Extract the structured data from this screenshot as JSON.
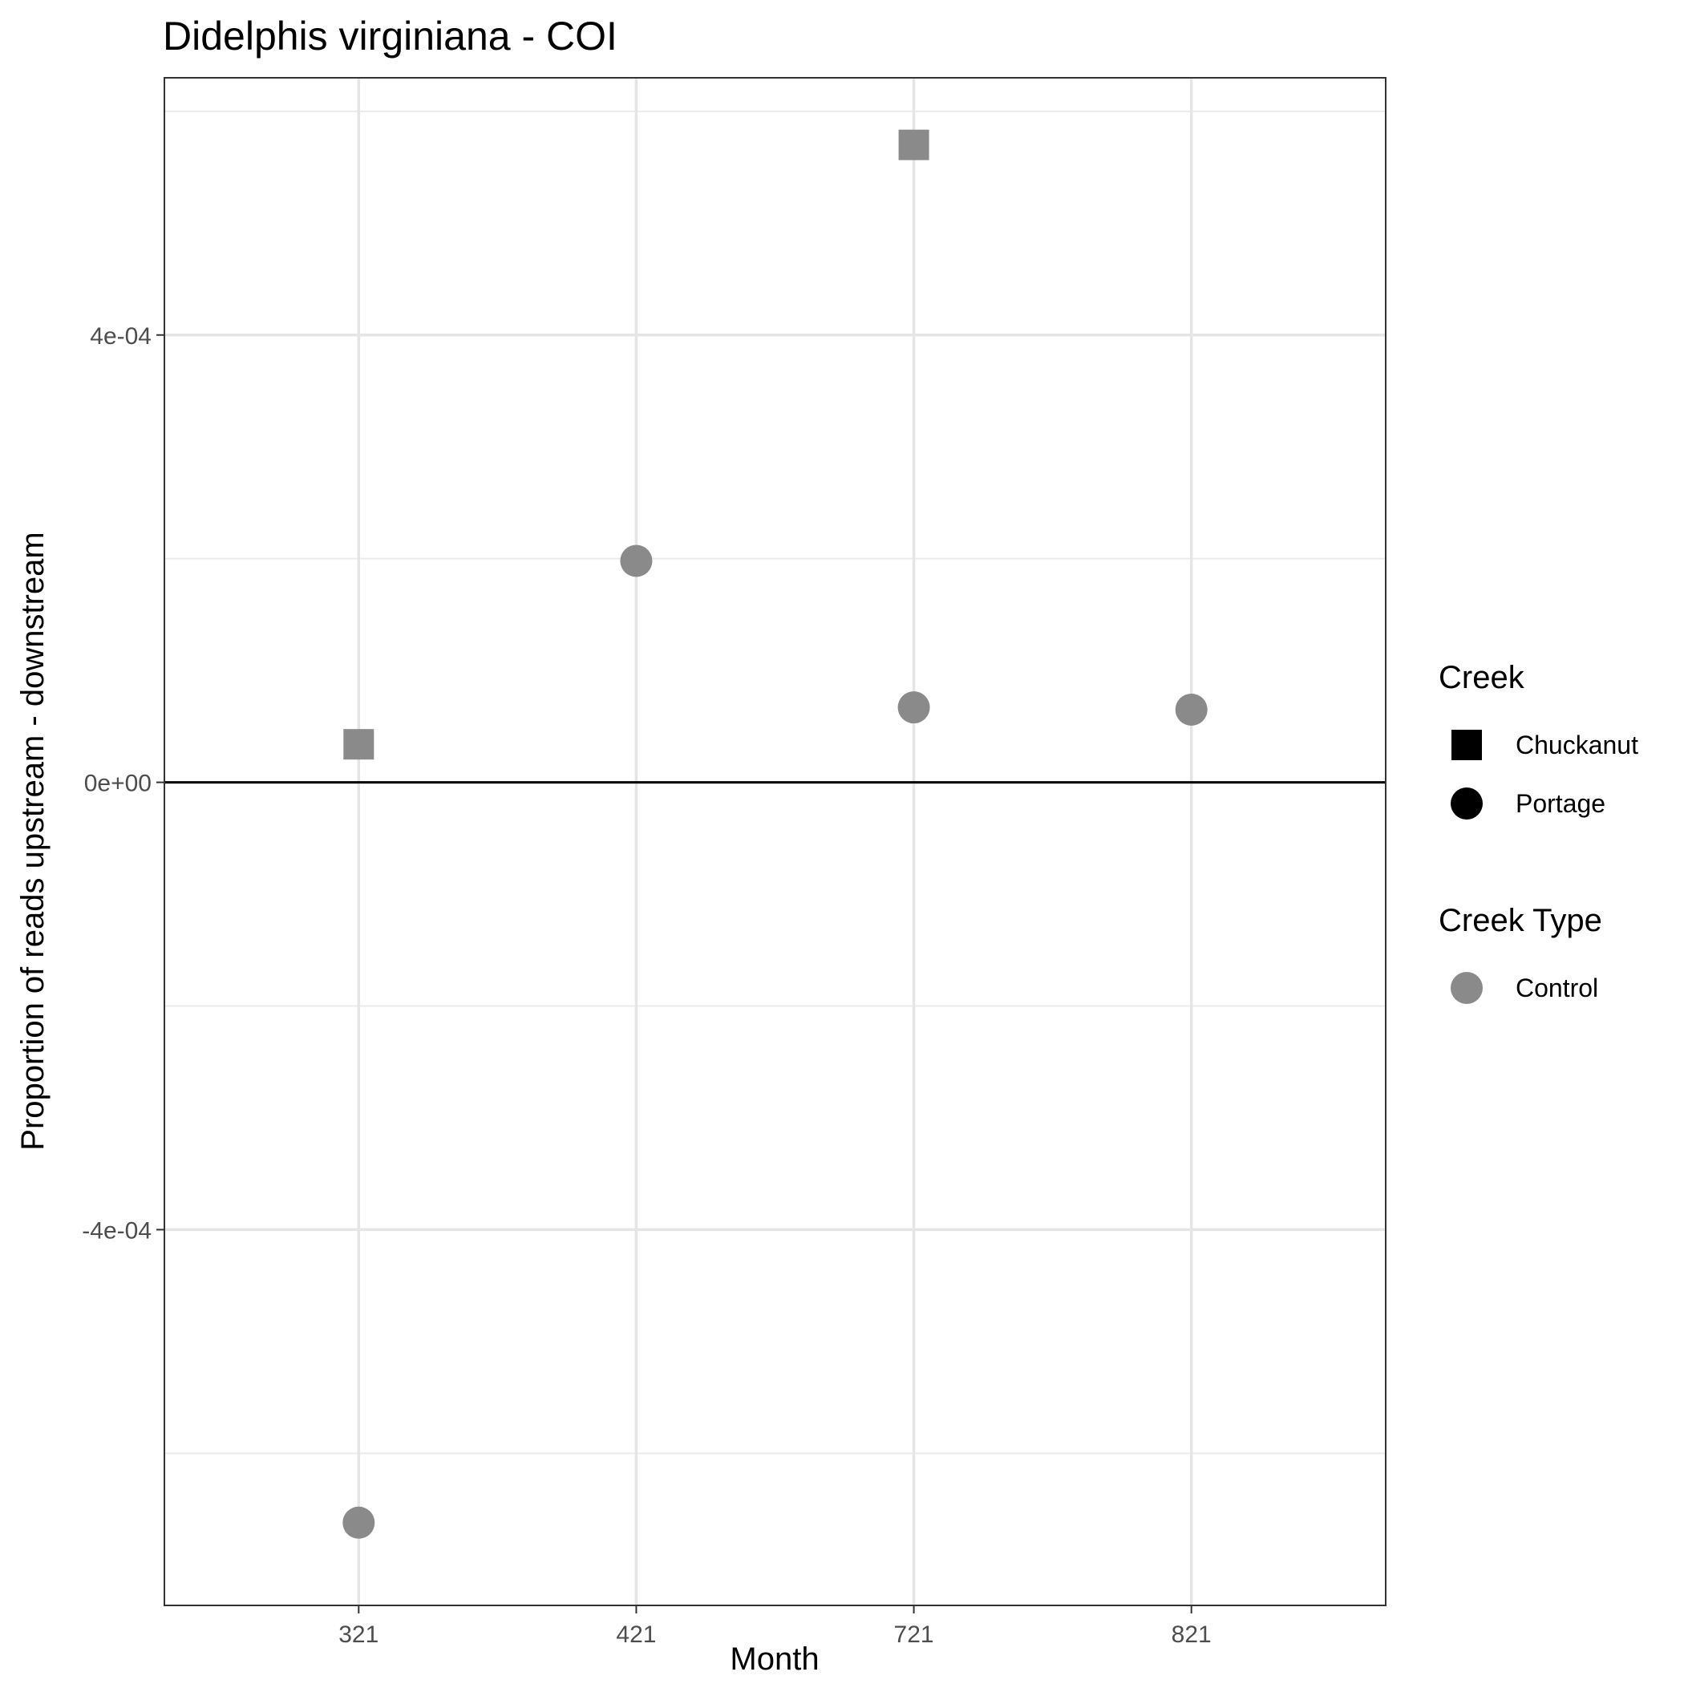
{
  "chart_data": {
    "type": "scatter",
    "title": "Didelphis virginiana - COI",
    "xlabel": "Month",
    "ylabel": "Proportion of reads upstream - downstream",
    "categories": [
      "321",
      "421",
      "721",
      "821"
    ],
    "y_ticks": [
      {
        "value": -0.0004,
        "label": "-4e-04"
      },
      {
        "value": 0,
        "label": "0e+00"
      },
      {
        "value": 0.0004,
        "label": "4e-04"
      }
    ],
    "y_minor_ticks": [
      -0.0006,
      -0.0002,
      0.0002,
      0.0006
    ],
    "ylim": [
      -0.000736,
      0.00063
    ],
    "reference_line_y": 0,
    "grid": true,
    "series": [
      {
        "creek": "Chuckanut",
        "shape": "square",
        "creek_type": "Control",
        "points": [
          {
            "x": "321",
            "y": 3.4e-05
          },
          {
            "x": "721",
            "y": 0.00057
          }
        ]
      },
      {
        "creek": "Portage",
        "shape": "circle",
        "creek_type": "Control",
        "points": [
          {
            "x": "321",
            "y": -0.000662
          },
          {
            "x": "421",
            "y": 0.000198
          },
          {
            "x": "721",
            "y": 6.7e-05
          },
          {
            "x": "821",
            "y": 6.5e-05
          }
        ]
      }
    ],
    "point_color": "#8a8a8a",
    "legend": {
      "placement": "right",
      "groups": [
        {
          "title": "Creek",
          "items": [
            {
              "label": "Chuckanut",
              "shape": "square",
              "color": "#000000"
            },
            {
              "label": "Portage",
              "shape": "circle",
              "color": "#000000"
            }
          ]
        },
        {
          "title": "Creek Type",
          "items": [
            {
              "label": "Control",
              "shape": "circle",
              "color": "#8a8a8a"
            }
          ]
        }
      ]
    }
  }
}
